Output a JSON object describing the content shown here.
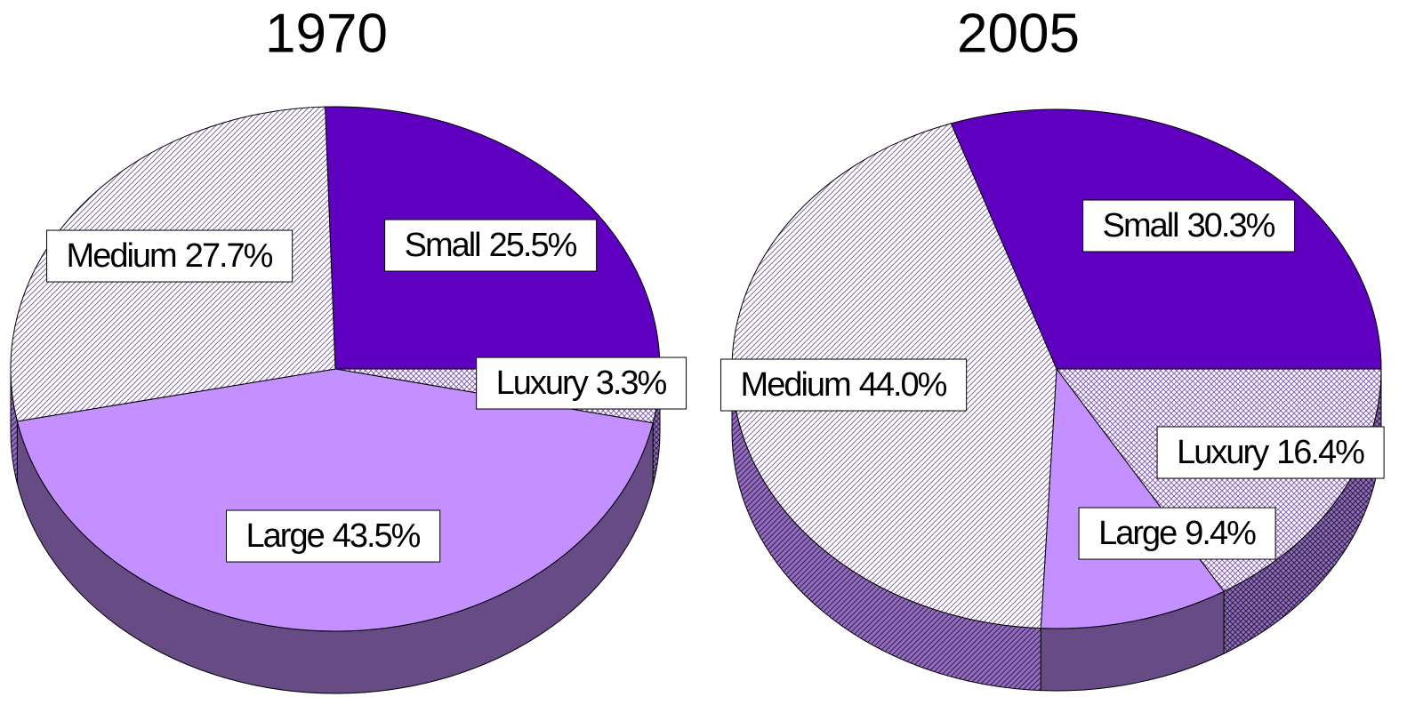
{
  "chart_data": [
    {
      "type": "pie",
      "title": "1970",
      "categories": [
        "Small",
        "Luxury",
        "Large",
        "Medium"
      ],
      "values": [
        25.5,
        3.3,
        43.5,
        27.7
      ],
      "value_labels": [
        "25.5%",
        "3.3%",
        "43.5%",
        "27.7%"
      ],
      "colors": [
        "#5f00c0",
        "#c490ff",
        "#c490ff",
        "#c490ff"
      ],
      "patterns": [
        "solid",
        "crosshatch",
        "solid",
        "hatch"
      ]
    },
    {
      "type": "pie",
      "title": "2005",
      "categories": [
        "Small",
        "Luxury",
        "Large",
        "Medium"
      ],
      "values": [
        30.3,
        16.4,
        9.4,
        44.0
      ],
      "value_labels": [
        "30.3%",
        "16.4%",
        "9.4%",
        "44.0%"
      ],
      "colors": [
        "#5f00c0",
        "#c490ff",
        "#c490ff",
        "#c490ff"
      ],
      "patterns": [
        "solid",
        "crosshatch",
        "solid",
        "hatch"
      ]
    }
  ]
}
